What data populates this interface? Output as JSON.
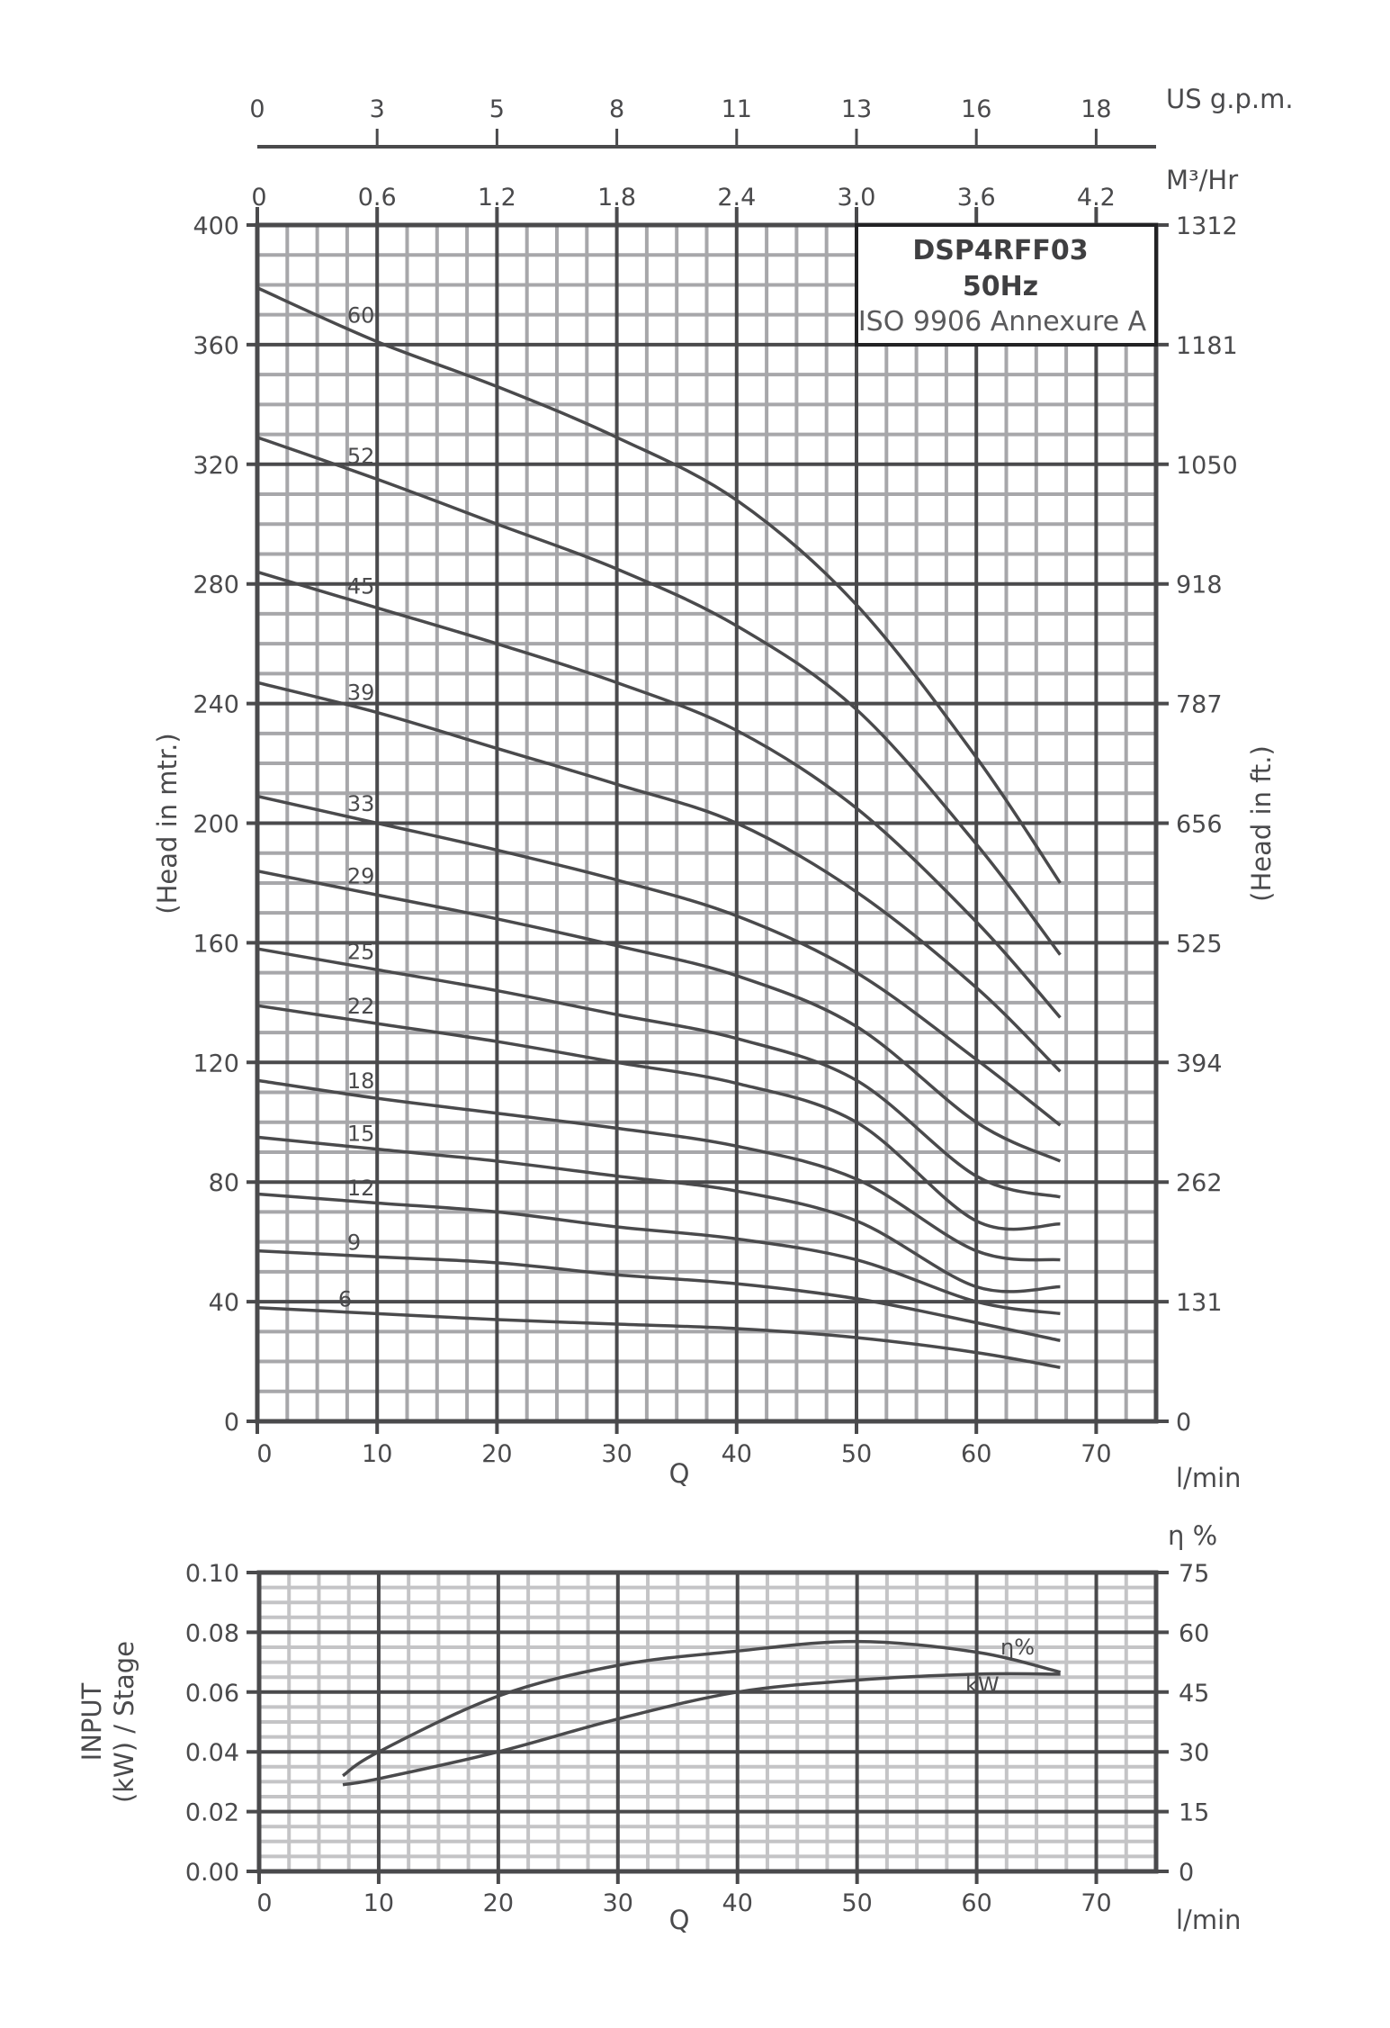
{
  "chart_data": [
    {
      "type": "line",
      "title": "DSP4RFF03",
      "subtitle": "50Hz",
      "annotation": "ISO 9906 Annexure A",
      "xlabel": "Q",
      "xunit": "l/min",
      "ylabel": "(Head in mtr.)",
      "ylabel_right": "(Head in ft.)",
      "xlim": [
        0,
        75
      ],
      "ylim": [
        0,
        400
      ],
      "grid": true,
      "x_ticks": [
        0,
        10,
        20,
        30,
        40,
        50,
        60,
        70
      ],
      "y_ticks": [
        0,
        40,
        80,
        120,
        160,
        200,
        240,
        280,
        320,
        360,
        400
      ],
      "y_right_ticks": [
        "0",
        "131",
        "262",
        "394",
        "525",
        "656",
        "787",
        "918",
        "1050",
        "1181",
        "1312"
      ],
      "top_axis_m3hr": {
        "label": "M³/Hr",
        "ticks": [
          "0",
          "0.6",
          "1.2",
          "1.8",
          "2.4",
          "3.0",
          "3.6",
          "4.2"
        ]
      },
      "top_axis_usgpm": {
        "label": "US g.p.m.",
        "ticks": [
          "0",
          "3",
          "5",
          "8",
          "11",
          "13",
          "16",
          "18"
        ]
      },
      "x": [
        0,
        10,
        20,
        30,
        40,
        50,
        60,
        67
      ],
      "series": [
        {
          "name": "60",
          "values": [
            379,
            361,
            346,
            329,
            308,
            273,
            222,
            180
          ]
        },
        {
          "name": "52",
          "values": [
            329,
            315,
            300,
            285,
            266,
            238,
            193,
            156
          ]
        },
        {
          "name": "45",
          "values": [
            284,
            272,
            260,
            247,
            231,
            205,
            167,
            135
          ]
        },
        {
          "name": "39",
          "values": [
            247,
            237,
            225,
            213,
            200,
            177,
            145,
            117
          ]
        },
        {
          "name": "33",
          "values": [
            209,
            200,
            191,
            181,
            169,
            150,
            121,
            99
          ]
        },
        {
          "name": "29",
          "values": [
            184,
            176,
            168,
            159,
            149,
            132,
            100,
            87
          ]
        },
        {
          "name": "25",
          "values": [
            158,
            151,
            144,
            136,
            128,
            114,
            82,
            75
          ]
        },
        {
          "name": "22",
          "values": [
            139,
            133,
            127,
            120,
            113,
            100,
            67,
            66
          ]
        },
        {
          "name": "18",
          "values": [
            114,
            108,
            103,
            98,
            92,
            81,
            57,
            54
          ]
        },
        {
          "name": "15",
          "values": [
            95,
            91,
            87,
            82,
            77,
            67,
            45,
            45
          ]
        },
        {
          "name": "12",
          "values": [
            76,
            73,
            70,
            65,
            61,
            54,
            40,
            36
          ]
        },
        {
          "name": "9",
          "values": [
            57,
            55,
            53,
            49,
            46,
            41,
            33,
            27
          ]
        },
        {
          "name": "6",
          "values": [
            38,
            36,
            34,
            32.5,
            31,
            28,
            23,
            18
          ]
        }
      ]
    },
    {
      "type": "line",
      "xlabel": "Q",
      "xunit": "l/min",
      "ylabel": "INPUT (kW) / Stage",
      "ylabel_right": "η %",
      "xlim": [
        0,
        75
      ],
      "ylim": [
        0,
        0.1
      ],
      "grid": true,
      "x_ticks": [
        0,
        10,
        20,
        30,
        40,
        50,
        60,
        70
      ],
      "y_ticks": [
        "0.00",
        "0.02",
        "0.04",
        "0.06",
        "0.08",
        "0.10"
      ],
      "y_right_ticks": [
        "0",
        "15",
        "30",
        "45",
        "60",
        "75"
      ],
      "x": [
        7,
        10,
        20,
        30,
        40,
        50,
        60,
        67
      ],
      "series": [
        {
          "name": "η%",
          "axis": "right",
          "values": [
            24,
            30,
            44,
            51.7,
            55.3,
            57.7,
            55,
            50
          ]
        },
        {
          "name": "kW",
          "axis": "left",
          "values": [
            0.029,
            0.031,
            0.04,
            0.051,
            0.06,
            0.064,
            0.066,
            0.066
          ]
        }
      ]
    }
  ],
  "labels": {
    "model_box": {
      "line1": "DSP4RFF03",
      "line2": "50Hz",
      "line3": "ISO 9906 Annexure A"
    },
    "usgpm_unit": "US g.p.m.",
    "m3hr_unit": "M³/Hr",
    "head_m_title": "(Head in mtr.)",
    "head_ft_title": "(Head in ft.)",
    "q_label": "Q",
    "lpm_unit": "l/min",
    "input_title_1": "INPUT",
    "input_title_2": "(kW) / Stage",
    "eta_unit": "η %",
    "eta_curve_label": "η%",
    "kw_curve_label": "kW"
  },
  "colors": {
    "ink": "#4a4a4c",
    "major_grid": "#4a4a4c",
    "minor_grid": "#a7a7aa",
    "minor_grid_light": "#c4c4c6",
    "box_border": "#222224"
  }
}
